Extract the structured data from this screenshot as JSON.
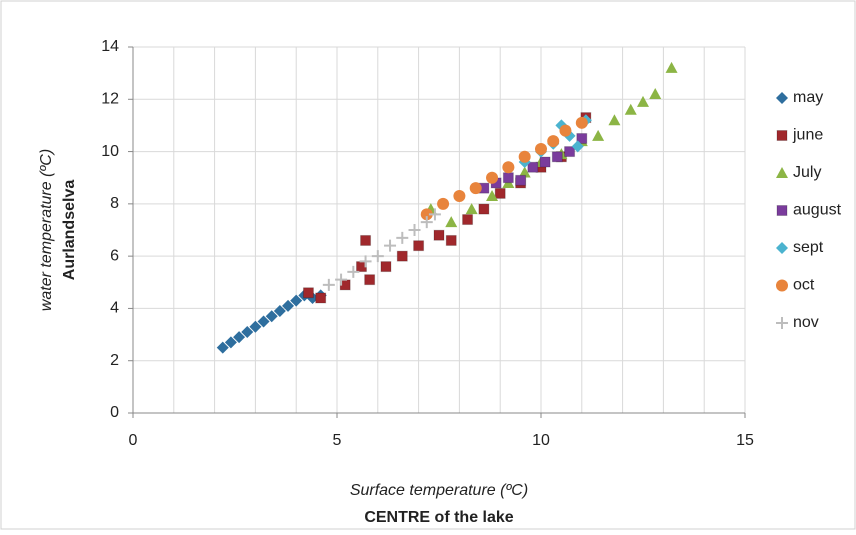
{
  "chart_data": {
    "type": "scatter",
    "xlabel": "Surface temperature (ºC)",
    "xlabel2": "CENTRE of the lake",
    "ylabel": "water temperature (ºC)",
    "ylabel2": "Aurlandselva",
    "xlim": [
      0,
      15
    ],
    "xticks": [
      0,
      5,
      10,
      15
    ],
    "xgrid_step": 1,
    "ylim": [
      0,
      14
    ],
    "yticks": [
      0,
      2,
      4,
      6,
      8,
      10,
      12,
      14
    ],
    "grid": true,
    "legend": "right",
    "series": [
      {
        "name": "may",
        "color": "#2e6e9e",
        "marker": "diamond",
        "x": [
          2.2,
          2.4,
          2.6,
          2.8,
          3.0,
          3.2,
          3.4,
          3.6,
          3.8,
          4.0,
          4.2,
          4.4,
          4.6
        ],
        "values": [
          2.5,
          2.7,
          2.9,
          3.1,
          3.3,
          3.5,
          3.7,
          3.9,
          4.1,
          4.3,
          4.5,
          4.4,
          4.5
        ]
      },
      {
        "name": "june",
        "color": "#a0282c",
        "marker": "square",
        "x": [
          4.3,
          4.6,
          5.2,
          5.7,
          5.6,
          5.8,
          6.2,
          6.6,
          7.0,
          7.5,
          7.8,
          8.2,
          8.6,
          9.0,
          9.5,
          10.0,
          10.5,
          11.1
        ],
        "values": [
          4.6,
          4.4,
          4.9,
          6.6,
          5.6,
          5.1,
          5.6,
          6.0,
          6.4,
          6.8,
          6.6,
          7.4,
          7.8,
          8.4,
          8.8,
          9.4,
          9.8,
          11.3
        ]
      },
      {
        "name": "July",
        "color": "#8cb545",
        "marker": "triangle",
        "x": [
          7.3,
          7.8,
          8.3,
          8.8,
          9.2,
          9.6,
          10.0,
          10.5,
          11.0,
          11.4,
          11.8,
          12.2,
          12.5,
          12.8,
          13.2
        ],
        "values": [
          7.8,
          7.3,
          7.8,
          8.3,
          8.8,
          9.2,
          9.6,
          9.9,
          10.4,
          10.6,
          11.2,
          11.6,
          11.9,
          12.2,
          13.2
        ]
      },
      {
        "name": "august",
        "color": "#7a3c9c",
        "marker": "square",
        "x": [
          8.6,
          8.9,
          9.2,
          9.5,
          9.8,
          10.1,
          10.4,
          10.7,
          11.0
        ],
        "values": [
          8.6,
          8.8,
          9.0,
          8.9,
          9.4,
          9.6,
          9.8,
          10.0,
          10.5
        ]
      },
      {
        "name": "sept",
        "color": "#4bb3cf",
        "marker": "diamond",
        "x": [
          8.8,
          9.2,
          9.6,
          10.0,
          10.3,
          10.5,
          10.7,
          10.9,
          11.1
        ],
        "values": [
          9.0,
          9.4,
          9.6,
          10.0,
          10.3,
          11.0,
          10.6,
          10.2,
          11.2
        ]
      },
      {
        "name": "oct",
        "color": "#e8843c",
        "marker": "circle",
        "x": [
          7.2,
          7.6,
          8.0,
          8.4,
          8.8,
          9.2,
          9.6,
          10.0,
          10.3,
          10.6,
          11.0
        ],
        "values": [
          7.6,
          8.0,
          8.3,
          8.6,
          9.0,
          9.4,
          9.8,
          10.1,
          10.4,
          10.8,
          11.1
        ]
      },
      {
        "name": "nov",
        "color": "#bdbdbd",
        "marker": "plus",
        "x": [
          4.8,
          5.1,
          5.4,
          5.7,
          6.0,
          6.3,
          6.6,
          6.9,
          7.2,
          7.4
        ],
        "values": [
          4.9,
          5.1,
          5.4,
          5.8,
          6.0,
          6.4,
          6.7,
          7.0,
          7.3,
          7.6
        ]
      }
    ]
  }
}
